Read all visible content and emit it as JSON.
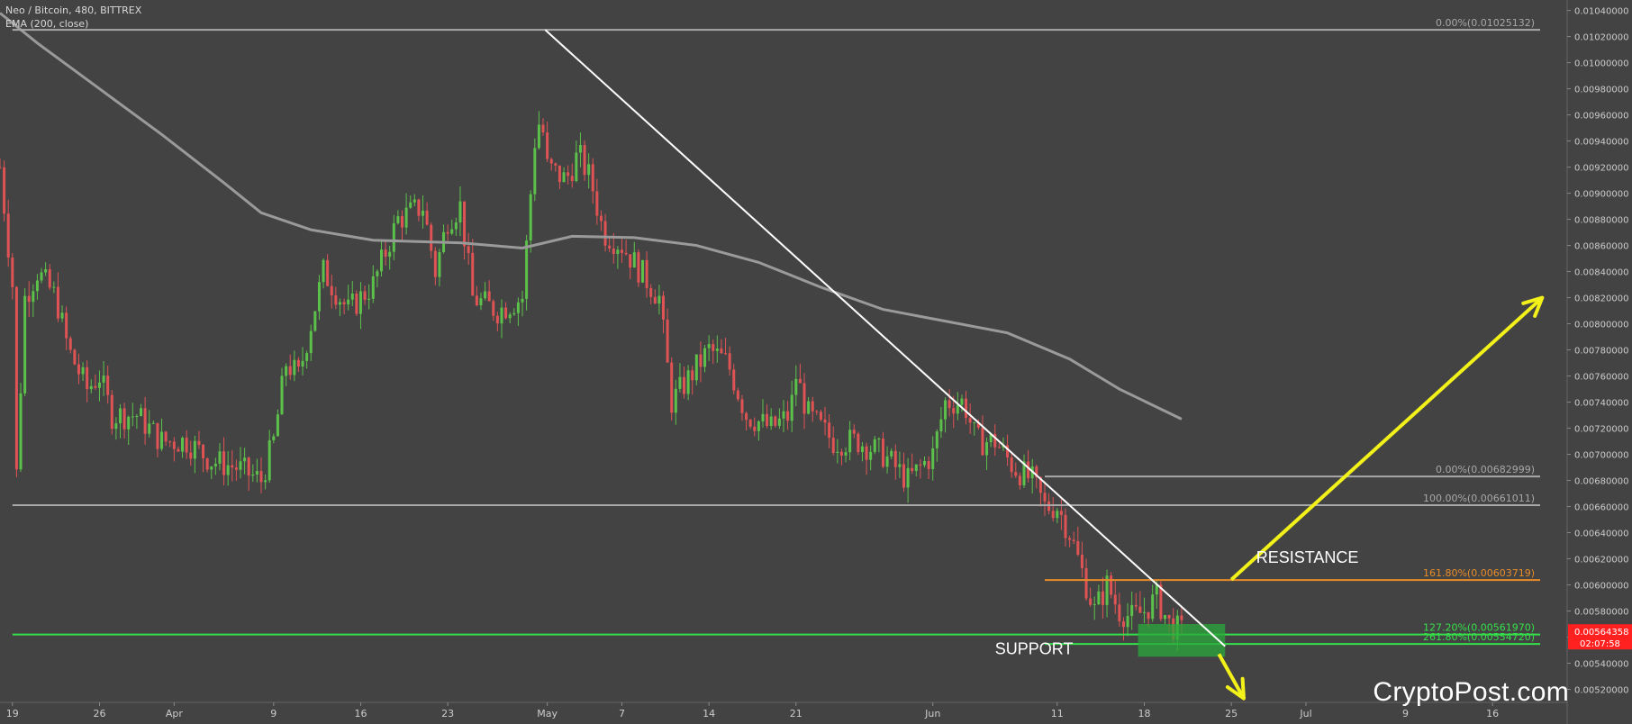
{
  "header": {
    "title": "Neo / Bitcoin, 480, BITTREX",
    "indicator": "EMA (200, close)"
  },
  "watermark": "CryptoPost.com",
  "colors": {
    "background": "#434343",
    "up": "#5cc14a",
    "down": "#e05355",
    "ema": "#9a9a9a",
    "fib_upper": "#a8a8a8",
    "resistance": "#e88c2a",
    "support": "#35e04a",
    "arrow": "#f2f21a",
    "trendline": "#ffffff",
    "price_tag": "#ff2020"
  },
  "chart_data": {
    "type": "candlestick",
    "y_range": [
      0.0051,
      0.01048
    ],
    "y_ticks": [
      "0.01040000",
      "0.01020000",
      "0.01000000",
      "0.00980000",
      "0.00960000",
      "0.00940000",
      "0.00920000",
      "0.00900000",
      "0.00880000",
      "0.00860000",
      "0.00840000",
      "0.00820000",
      "0.00800000",
      "0.00780000",
      "0.00760000",
      "0.00740000",
      "0.00720000",
      "0.00700000",
      "0.00680000",
      "0.00660000",
      "0.00640000",
      "0.00620000",
      "0.00600000",
      "0.00580000",
      "0.00560000",
      "0.00540000",
      "0.00520000"
    ],
    "x_ticks": [
      {
        "label": "19",
        "date": "2018-03-19"
      },
      {
        "label": "26",
        "date": "2018-03-26"
      },
      {
        "label": "Apr",
        "date": "2018-04-01"
      },
      {
        "label": "9",
        "date": "2018-04-09"
      },
      {
        "label": "16",
        "date": "2018-04-16"
      },
      {
        "label": "23",
        "date": "2018-04-23"
      },
      {
        "label": "May",
        "date": "2018-05-01"
      },
      {
        "label": "7",
        "date": "2018-05-07"
      },
      {
        "label": "14",
        "date": "2018-05-14"
      },
      {
        "label": "21",
        "date": "2018-05-21"
      },
      {
        "label": "Jun",
        "date": "2018-06-01"
      },
      {
        "label": "11",
        "date": "2018-06-11"
      },
      {
        "label": "18",
        "date": "2018-06-18"
      },
      {
        "label": "25",
        "date": "2018-06-25"
      },
      {
        "label": "Jul",
        "date": "2018-07-01"
      },
      {
        "label": "9",
        "date": "2018-07-09"
      },
      {
        "label": "16",
        "date": "2018-07-16"
      }
    ],
    "x_range": [
      "2018-03-18",
      "2018-07-22"
    ],
    "price_path": [
      [
        "2018-03-18T00:00",
        0.0092
      ],
      [
        "2018-03-19T00:00",
        0.0083
      ],
      [
        "2018-03-19T08:00",
        0.00685
      ],
      [
        "2018-03-20T00:00",
        0.0082
      ],
      [
        "2018-03-21T00:00",
        0.0084
      ],
      [
        "2018-03-22T12:00",
        0.0082
      ],
      [
        "2018-03-23T12:00",
        0.0078
      ],
      [
        "2018-03-25T00:00",
        0.0075
      ],
      [
        "2018-03-26T00:00",
        0.0076
      ],
      [
        "2018-03-27T00:00",
        0.0073
      ],
      [
        "2018-03-29T00:00",
        0.0073
      ],
      [
        "2018-03-31T00:00",
        0.0071
      ],
      [
        "2018-04-02T00:00",
        0.0071
      ],
      [
        "2018-04-04T00:00",
        0.00695
      ],
      [
        "2018-04-06T00:00",
        0.0069
      ],
      [
        "2018-04-08T00:00",
        0.0068
      ],
      [
        "2018-04-09T00:00",
        0.0071
      ],
      [
        "2018-04-10T00:00",
        0.0077
      ],
      [
        "2018-04-11T00:00",
        0.0076
      ],
      [
        "2018-04-13T00:00",
        0.0084
      ],
      [
        "2018-04-15T00:00",
        0.0081
      ],
      [
        "2018-04-17T00:00",
        0.0083
      ],
      [
        "2018-04-19T00:00",
        0.0088
      ],
      [
        "2018-04-21T00:00",
        0.0089
      ],
      [
        "2018-04-22T00:00",
        0.0084
      ],
      [
        "2018-04-23T00:00",
        0.0088
      ],
      [
        "2018-04-24T00:00",
        0.0089
      ],
      [
        "2018-04-25T00:00",
        0.0082
      ],
      [
        "2018-04-27T00:00",
        0.0081
      ],
      [
        "2018-04-29T00:00",
        0.0082
      ],
      [
        "2018-04-30T00:00",
        0.0094
      ],
      [
        "2018-04-30T12:00",
        0.0096
      ],
      [
        "2018-05-01T00:00",
        0.0092
      ],
      [
        "2018-05-02T12:00",
        0.0091
      ],
      [
        "2018-05-03T12:00",
        0.0093
      ],
      [
        "2018-05-04T12:00",
        0.0091
      ],
      [
        "2018-05-05T12:00",
        0.0087
      ],
      [
        "2018-05-07T00:00",
        0.0086
      ],
      [
        "2018-05-08T12:00",
        0.0084
      ],
      [
        "2018-05-10T00:00",
        0.0082
      ],
      [
        "2018-05-11T00:00",
        0.0074
      ],
      [
        "2018-05-12T12:00",
        0.0076
      ],
      [
        "2018-05-14T00:00",
        0.0078
      ],
      [
        "2018-05-15T12:00",
        0.0077
      ],
      [
        "2018-05-17T00:00",
        0.0073
      ],
      [
        "2018-05-19T00:00",
        0.0072
      ],
      [
        "2018-05-20T12:00",
        0.0073
      ],
      [
        "2018-05-21T00:00",
        0.0076
      ],
      [
        "2018-05-22T00:00",
        0.0073
      ],
      [
        "2018-05-24T00:00",
        0.0071
      ],
      [
        "2018-05-26T00:00",
        0.0071
      ],
      [
        "2018-05-28T00:00",
        0.007
      ],
      [
        "2018-05-30T00:00",
        0.0068
      ],
      [
        "2018-06-01T00:00",
        0.007
      ],
      [
        "2018-06-02T00:00",
        0.0074
      ],
      [
        "2018-06-03T12:00",
        0.0074
      ],
      [
        "2018-06-04T12:00",
        0.0071
      ],
      [
        "2018-06-06T00:00",
        0.0071
      ],
      [
        "2018-06-07T12:00",
        0.0069
      ],
      [
        "2018-06-09T00:00",
        0.0068
      ],
      [
        "2018-06-10T00:00",
        0.0066
      ],
      [
        "2018-06-11T00:00",
        0.0066
      ],
      [
        "2018-06-12T00:00",
        0.0064
      ],
      [
        "2018-06-13T00:00",
        0.0061
      ],
      [
        "2018-06-14T00:00",
        0.0058
      ],
      [
        "2018-06-15T00:00",
        0.006
      ],
      [
        "2018-06-16T00:00",
        0.0058
      ],
      [
        "2018-06-17T00:00",
        0.00575
      ],
      [
        "2018-06-18T00:00",
        0.0058
      ],
      [
        "2018-06-19T00:00",
        0.0059
      ],
      [
        "2018-06-20T00:00",
        0.0057
      ],
      [
        "2018-06-21T00:00",
        0.00564
      ]
    ],
    "ema_200": [
      [
        "2018-03-18",
        0.01038
      ],
      [
        "2018-03-21",
        0.01015
      ],
      [
        "2018-03-26",
        0.0098
      ],
      [
        "2018-03-31",
        0.00945
      ],
      [
        "2018-04-05",
        0.00908
      ],
      [
        "2018-04-08",
        0.00885
      ],
      [
        "2018-04-12",
        0.00872
      ],
      [
        "2018-04-17",
        0.00864
      ],
      [
        "2018-04-24",
        0.00862
      ],
      [
        "2018-04-29",
        0.00858
      ],
      [
        "2018-05-03",
        0.00867
      ],
      [
        "2018-05-08",
        0.00866
      ],
      [
        "2018-05-13",
        0.0086
      ],
      [
        "2018-05-18",
        0.00847
      ],
      [
        "2018-05-23",
        0.00828
      ],
      [
        "2018-05-28",
        0.00811
      ],
      [
        "2018-06-02",
        0.00802
      ],
      [
        "2018-06-07",
        0.00793
      ],
      [
        "2018-06-12",
        0.00773
      ],
      [
        "2018-06-16",
        0.0075
      ],
      [
        "2018-06-21",
        0.00727
      ]
    ],
    "trendline": {
      "from": [
        "2018-04-30T20:00",
        0.01025132
      ],
      "to": [
        "2018-06-24T12:00",
        0.00553
      ]
    },
    "horizontal_lines": [
      {
        "name": "fib-top",
        "price": 0.01025132,
        "from": "2018-03-19",
        "color_key": "fib_upper"
      },
      {
        "name": "fib-100",
        "price": 0.00661011,
        "from": "2018-03-19",
        "color_key": "fib_upper"
      },
      {
        "name": "fib-0-local",
        "price": 0.00682999,
        "from": "2018-06-10",
        "color_key": "fib_upper"
      },
      {
        "name": "resistance-line",
        "price": 0.00603719,
        "from": "2018-06-10",
        "color_key": "resistance"
      },
      {
        "name": "support-line-127",
        "price": 0.0056197,
        "from": "2018-03-19",
        "color_key": "support"
      },
      {
        "name": "support-line-261",
        "price": 0.0055472,
        "from": "2018-06-10",
        "color_key": "support"
      }
    ],
    "fib_labels": [
      {
        "text": "0.00%(0.01025132)",
        "price": 0.01025132,
        "color_key": "fib_upper"
      },
      {
        "text": "0.00%(0.00682999)",
        "price": 0.00682999,
        "color_key": "fib_upper"
      },
      {
        "text": "100.00%(0.00661011)",
        "price": 0.00661011,
        "color_key": "fib_upper"
      },
      {
        "text": "161.80%(0.00603719)",
        "price": 0.00603719,
        "color_key": "resistance"
      },
      {
        "text": "127.20%(0.00561970)",
        "price": 0.0056197,
        "color_key": "support"
      },
      {
        "text": "261.80%(0.00554720)",
        "price": 0.0055472,
        "color_key": "support"
      }
    ],
    "annotations": [
      {
        "text": "RESISTANCE",
        "price": 0.00617,
        "date": "2018-06-27"
      },
      {
        "text": "SUPPORT",
        "price": 0.00547,
        "date": "2018-06-06"
      }
    ],
    "support_zone": {
      "from": "2018-06-17T12:00",
      "to": "2018-06-24T12:00",
      "top": 0.0057,
      "bottom": 0.00545
    },
    "arrows": [
      {
        "name": "up-arrow",
        "from": [
          "2018-06-25",
          0.00604
        ],
        "to": [
          "2018-07-20",
          0.0082
        ]
      },
      {
        "name": "down-arrow",
        "from": [
          "2018-06-24",
          0.00547
        ],
        "to": [
          "2018-06-26",
          0.00513
        ]
      }
    ],
    "last_price": {
      "value": "0.00564358",
      "countdown": "02:07:58",
      "price": 0.00564358
    }
  }
}
